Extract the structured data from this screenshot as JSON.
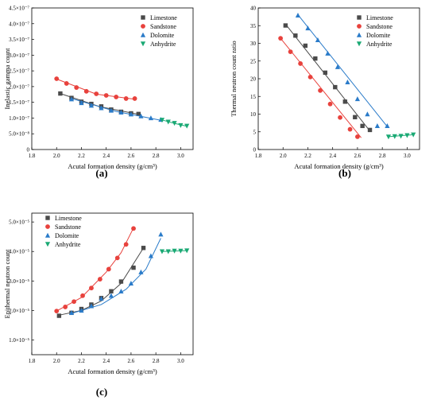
{
  "panels": [
    {
      "id": "a",
      "caption": "(a)",
      "type": "scatter",
      "xlabel": "Acutal formation density (g/cm³)",
      "ylabel": "Inelastic gamma count",
      "xlim": [
        1.8,
        3.1
      ],
      "ylim": [
        0,
        4.5e-07
      ],
      "xticks": [
        "1.8",
        "2.0",
        "2.2",
        "2.4",
        "2.6",
        "2.8",
        "3.0"
      ],
      "yticks": [
        "0",
        "5.0×10⁻⁸",
        "1.0×10⁻⁷",
        "1.5×10⁻⁷",
        "2.0×10⁻⁷",
        "2.5×10⁻⁷",
        "3.0×10⁻⁷",
        "3.5×10⁻⁷",
        "4.0×10⁻⁷",
        "4.5×10⁻⁷"
      ],
      "series": [
        {
          "name": "Limestone",
          "marker": "square",
          "color": "#4a4a4a",
          "x": [
            2.03,
            2.12,
            2.2,
            2.28,
            2.36,
            2.44,
            2.52,
            2.6,
            2.66
          ],
          "y": [
            1.78e-07,
            1.64e-07,
            1.52e-07,
            1.45e-07,
            1.37e-07,
            1.27e-07,
            1.2e-07,
            1.15e-07,
            1.13e-07
          ],
          "fit": [
            [
              2.03,
              1.78e-07
            ],
            [
              2.35,
              1.36e-07
            ],
            [
              2.66,
              1.12e-07
            ]
          ]
        },
        {
          "name": "Sandstone",
          "marker": "circle",
          "color": "#e8423d",
          "x": [
            2.0,
            2.08,
            2.16,
            2.24,
            2.32,
            2.4,
            2.48,
            2.56,
            2.63
          ],
          "y": [
            2.25e-07,
            2.1e-07,
            1.97e-07,
            1.85e-07,
            1.77e-07,
            1.72e-07,
            1.67e-07,
            1.62e-07,
            1.62e-07
          ],
          "fit": [
            [
              2.0,
              2.24e-07
            ],
            [
              2.32,
              1.76e-07
            ],
            [
              2.63,
              1.6e-07
            ]
          ]
        },
        {
          "name": "Dolomite",
          "marker": "triangle-up",
          "color": "#2a7bc9",
          "x": [
            2.12,
            2.2,
            2.28,
            2.36,
            2.44,
            2.52,
            2.6,
            2.68,
            2.76,
            2.84
          ],
          "y": [
            1.6e-07,
            1.48e-07,
            1.4e-07,
            1.32e-07,
            1.24e-07,
            1.18e-07,
            1.12e-07,
            1.06e-07,
            1e-07,
            9.5e-08
          ],
          "fit": [
            [
              2.12,
              1.62e-07
            ],
            [
              2.48,
              1.21e-07
            ],
            [
              2.84,
              9.3e-08
            ]
          ]
        },
        {
          "name": "Anhydrite",
          "marker": "triangle-down",
          "color": "#1aa974",
          "x": [
            2.85,
            2.9,
            2.95,
            3.0,
            3.05
          ],
          "y": [
            9.4e-08,
            8.8e-08,
            8.4e-08,
            7.7e-08,
            7.5e-08
          ],
          "fit": [
            [
              2.85,
              9.4e-08
            ],
            [
              2.95,
              8.3e-08
            ],
            [
              3.05,
              7.4e-08
            ]
          ]
        }
      ]
    },
    {
      "id": "b",
      "caption": "(b)",
      "type": "scatter",
      "xlabel": "Acutal formation density (g/cm³)",
      "ylabel": "Thermal neutron count ratio",
      "xlim": [
        1.8,
        3.1
      ],
      "ylim": [
        0,
        42
      ],
      "xticks": [
        "1.8",
        "2.0",
        "2.2",
        "2.4",
        "2.6",
        "2.8",
        "3.0"
      ],
      "yticks": [
        "0",
        "5",
        "10",
        "15",
        "20",
        "25",
        "30",
        "35",
        "40"
      ],
      "series": [
        {
          "name": "Limestone",
          "marker": "square",
          "color": "#4a4a4a",
          "x": [
            2.02,
            2.1,
            2.18,
            2.26,
            2.34,
            2.42,
            2.5,
            2.58,
            2.64,
            2.7
          ],
          "y": [
            36.8,
            33.8,
            30.8,
            27.0,
            22.8,
            18.5,
            14.2,
            9.6,
            7.0,
            5.8
          ],
          "fit": [
            [
              2.02,
              37.2
            ],
            [
              2.7,
              5.5
            ]
          ]
        },
        {
          "name": "Sandstone",
          "marker": "circle",
          "color": "#e8423d",
          "x": [
            1.98,
            2.06,
            2.14,
            2.22,
            2.3,
            2.38,
            2.46,
            2.54,
            2.6
          ],
          "y": [
            33.0,
            29.0,
            25.5,
            21.5,
            17.5,
            13.5,
            9.5,
            6.0,
            3.8
          ],
          "fit": [
            [
              1.98,
              33.0
            ],
            [
              2.63,
              3.5
            ]
          ]
        },
        {
          "name": "Dolomite",
          "marker": "triangle-up",
          "color": "#2a7bc9",
          "x": [
            2.12,
            2.2,
            2.28,
            2.36,
            2.44,
            2.52,
            2.6,
            2.68,
            2.76,
            2.84
          ],
          "y": [
            39.8,
            36.0,
            32.5,
            28.5,
            24.5,
            20.0,
            15.0,
            10.5,
            7.0,
            7.0
          ],
          "fit": [
            [
              2.12,
              40.0
            ],
            [
              2.84,
              6.8
            ]
          ]
        },
        {
          "name": "Anhydrite",
          "marker": "triangle-down",
          "color": "#1aa974",
          "x": [
            2.85,
            2.9,
            2.95,
            3.0,
            3.05
          ],
          "y": [
            3.8,
            3.9,
            4.0,
            4.2,
            4.4
          ],
          "fit": [
            [
              2.85,
              3.8
            ],
            [
              3.05,
              4.4
            ]
          ]
        }
      ]
    },
    {
      "id": "c",
      "caption": "(c)",
      "type": "scatter",
      "xlabel": "Acutal formation density (g/cm³)",
      "ylabel": "Epithermal neutron count",
      "xlim": [
        1.8,
        3.1
      ],
      "ylim": [
        5e-06,
        5.3e-05
      ],
      "xticks": [
        "1.8",
        "2.0",
        "2.2",
        "2.4",
        "2.6",
        "2.8",
        "3.0"
      ],
      "yticks": [
        "1.0×10⁻⁵",
        "2.0×10⁻⁵",
        "3.0×10⁻⁵",
        "4.0×10⁻⁵",
        "5.0×10⁻⁵"
      ],
      "series": [
        {
          "name": "Limestone",
          "marker": "square",
          "color": "#4a4a4a",
          "x": [
            2.02,
            2.12,
            2.2,
            2.28,
            2.36,
            2.44,
            2.52,
            2.62,
            2.7
          ],
          "y": [
            1.82e-05,
            1.92e-05,
            2.05e-05,
            2.2e-05,
            2.42e-05,
            2.65e-05,
            2.98e-05,
            3.45e-05,
            4.12e-05
          ],
          "fit": [
            [
              2.02,
              1.84e-05
            ],
            [
              2.2,
              2e-05
            ],
            [
              2.36,
              2.32e-05
            ],
            [
              2.52,
              2.92e-05
            ],
            [
              2.7,
              4.12e-05
            ]
          ]
        },
        {
          "name": "Sandstone",
          "marker": "circle",
          "color": "#e8423d",
          "x": [
            2.0,
            2.07,
            2.14,
            2.21,
            2.28,
            2.35,
            2.42,
            2.49,
            2.56,
            2.62
          ],
          "y": [
            1.98e-05,
            2.12e-05,
            2.3e-05,
            2.5e-05,
            2.76e-05,
            3.06e-05,
            3.4e-05,
            3.78e-05,
            4.24e-05,
            4.78e-05
          ],
          "fit": [
            [
              2.0,
              1.98e-05
            ],
            [
              2.2,
              2.44e-05
            ],
            [
              2.4,
              3.3e-05
            ],
            [
              2.52,
              3.96e-05
            ],
            [
              2.62,
              4.8e-05
            ]
          ]
        },
        {
          "name": "Dolomite",
          "marker": "triangle-up",
          "color": "#2a7bc9",
          "x": [
            2.12,
            2.2,
            2.28,
            2.36,
            2.44,
            2.52,
            2.6,
            2.68,
            2.76,
            2.84
          ],
          "y": [
            1.92e-05,
            2e-05,
            2.15e-05,
            2.4e-05,
            2.5e-05,
            2.65e-05,
            2.92e-05,
            3.3e-05,
            3.85e-05,
            4.58e-05
          ],
          "fit": [
            [
              2.12,
              1.9e-05
            ],
            [
              2.36,
              2.2e-05
            ],
            [
              2.56,
              2.72e-05
            ],
            [
              2.72,
              3.4e-05
            ],
            [
              2.84,
              4.45e-05
            ]
          ]
        },
        {
          "name": "Anhydrite",
          "marker": "triangle-down",
          "color": "#1aa974",
          "x": [
            2.85,
            2.9,
            2.95,
            3.0,
            3.05
          ],
          "y": [
            4e-05,
            4e-05,
            4.02e-05,
            4.02e-05,
            4.03e-05
          ],
          "fit": [
            [
              2.85,
              4e-05
            ],
            [
              3.05,
              4.03e-05
            ]
          ]
        }
      ]
    }
  ],
  "legend": [
    "Limestone",
    "Sandstone",
    "Dolomite",
    "Anhydrite"
  ]
}
